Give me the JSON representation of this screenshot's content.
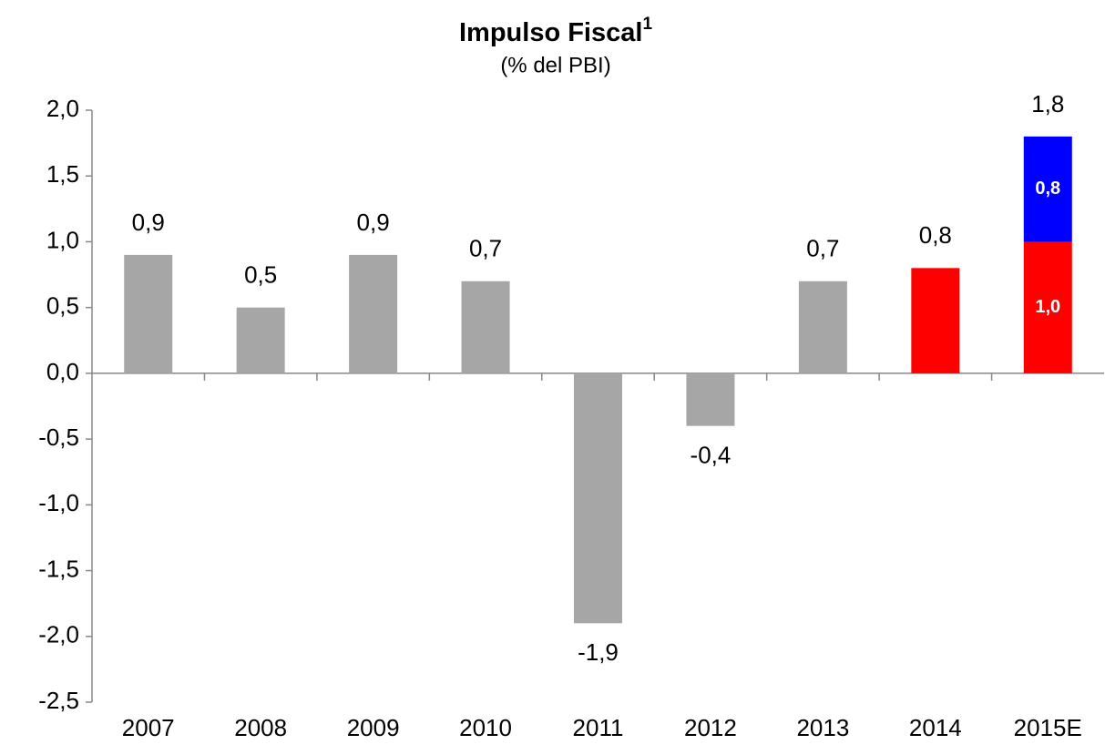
{
  "chart_data": {
    "type": "bar",
    "stacked": true,
    "title": "Impulso Fiscal",
    "title_superscript": "1",
    "subtitle": "(% del PBI)",
    "categories": [
      "2007",
      "2008",
      "2009",
      "2010",
      "2011",
      "2012",
      "2013",
      "2014",
      "2015E"
    ],
    "series": [
      {
        "color": "#a6a6a6",
        "values": [
          0.9,
          0.5,
          0.9,
          0.7,
          -1.9,
          -0.4,
          0.7,
          null,
          null
        ],
        "value_labels": [
          "0,9",
          "0,5",
          "0,9",
          "0,7",
          "-1,9",
          "-0,4",
          "0,7",
          null,
          null
        ]
      },
      {
        "color": "#ff0000",
        "values": [
          null,
          null,
          null,
          null,
          null,
          null,
          null,
          0.8,
          1.0
        ],
        "value_labels": [
          null,
          null,
          null,
          null,
          null,
          null,
          null,
          "0,8",
          "1,0"
        ]
      },
      {
        "color": "#0000ff",
        "values": [
          null,
          null,
          null,
          null,
          null,
          null,
          null,
          null,
          0.8
        ],
        "value_labels": [
          null,
          null,
          null,
          null,
          null,
          null,
          null,
          null,
          "0,8"
        ]
      }
    ],
    "totals": [
      null,
      null,
      null,
      null,
      null,
      null,
      null,
      null,
      1.8
    ],
    "total_labels": [
      null,
      null,
      null,
      null,
      null,
      null,
      null,
      null,
      "1,8"
    ],
    "ylim": [
      -2.5,
      2.0
    ],
    "yticks": [
      {
        "value": -2.5,
        "label": "-2,5"
      },
      {
        "value": -2.0,
        "label": "-2,0"
      },
      {
        "value": -1.5,
        "label": "-1,5"
      },
      {
        "value": -1.0,
        "label": "-1,0"
      },
      {
        "value": -0.5,
        "label": "-0,5"
      },
      {
        "value": 0,
        "label": "0,0"
      },
      {
        "value": 0.5,
        "label": "0,5"
      },
      {
        "value": 1.0,
        "label": "1,0"
      },
      {
        "value": 1.5,
        "label": "1,5"
      },
      {
        "value": 2.0,
        "label": "2,0"
      }
    ],
    "grid": false
  }
}
